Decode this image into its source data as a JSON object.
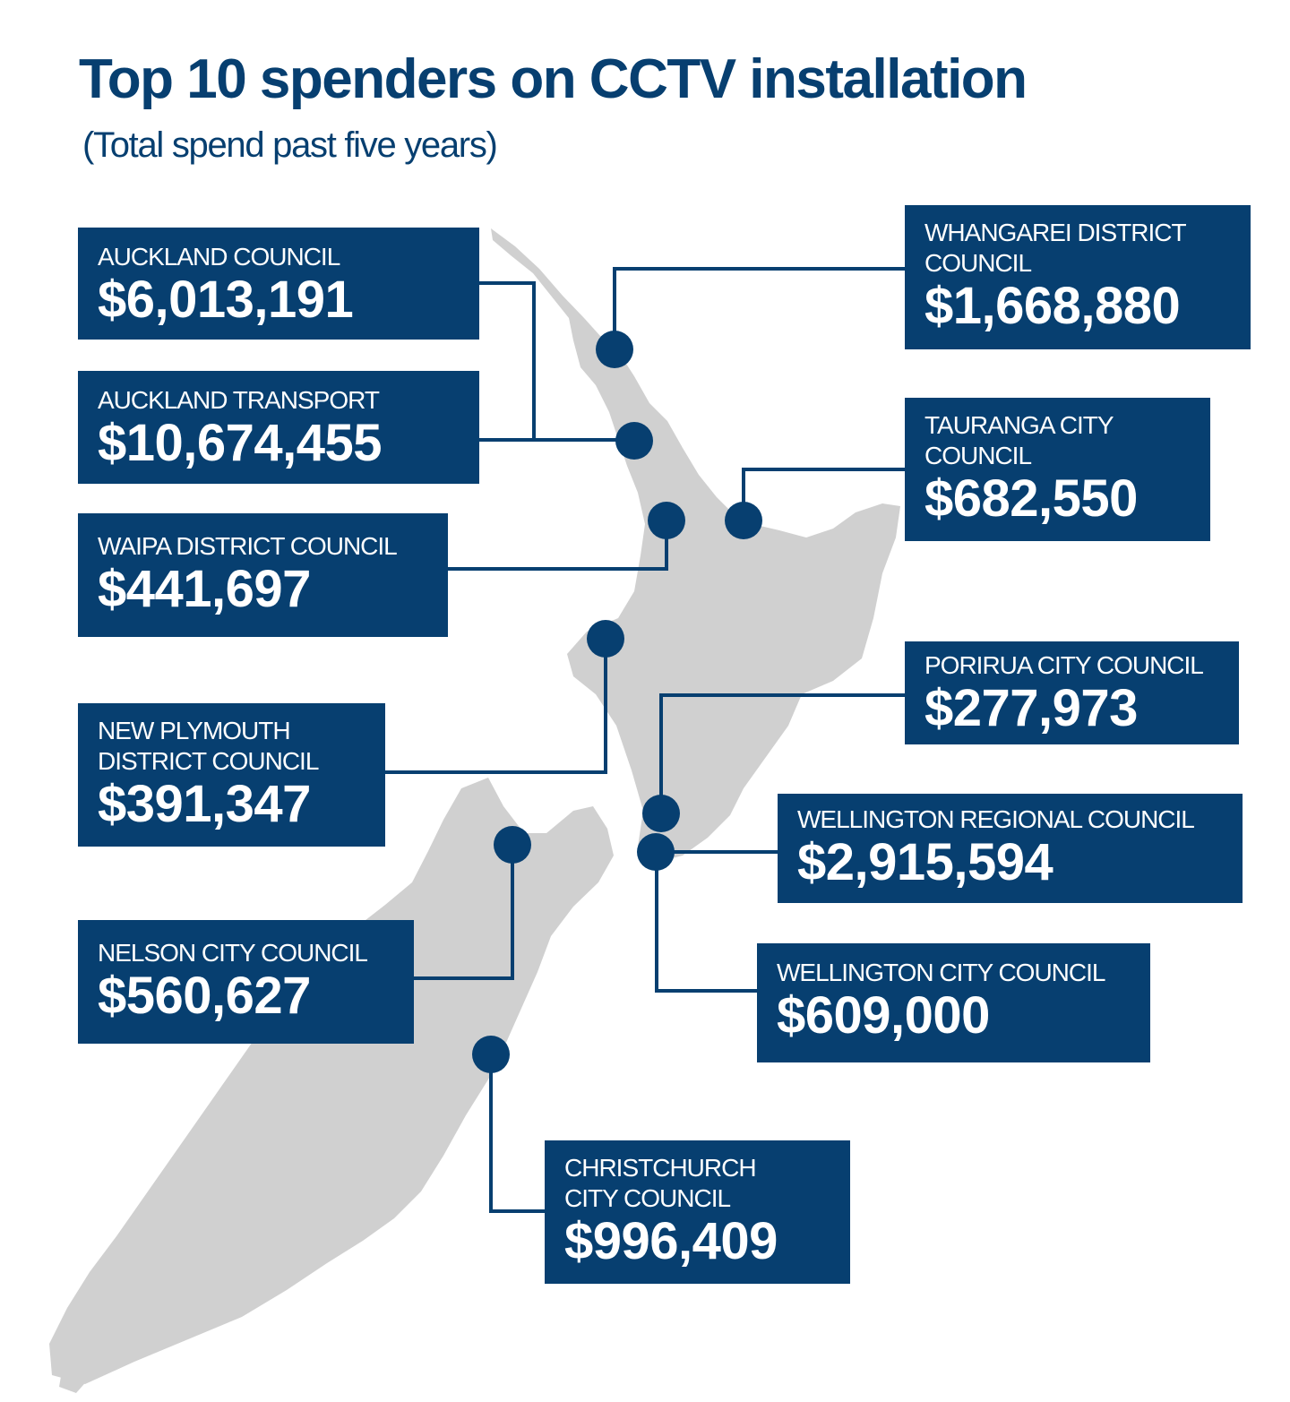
{
  "title": "Top 10 spenders on CCTV installation",
  "subtitle": "(Total spend past five years)",
  "colors": {
    "box_fill": "#073f70",
    "box_text": "#ffffff",
    "land": "#d0d0d0",
    "marker": "#073f70",
    "title_text": "#073f70"
  },
  "councils": [
    {
      "id": "auckland-council",
      "name": "AUCKLAND COUNCIL",
      "amount": "$6,013,191"
    },
    {
      "id": "auckland-transport",
      "name": "AUCKLAND TRANSPORT",
      "amount": "$10,674,455"
    },
    {
      "id": "waipa",
      "name": "WAIPA DISTRICT COUNCIL",
      "amount": "$441,697"
    },
    {
      "id": "new-plymouth",
      "name": "NEW PLYMOUTH\nDISTRICT COUNCIL",
      "amount": "$391,347"
    },
    {
      "id": "nelson",
      "name": "NELSON CITY COUNCIL",
      "amount": "$560,627"
    },
    {
      "id": "whangarei",
      "name": "WHANGAREI DISTRICT\nCOUNCIL",
      "amount": "$1,668,880"
    },
    {
      "id": "tauranga",
      "name": "TAURANGA CITY\nCOUNCIL",
      "amount": "$682,550"
    },
    {
      "id": "porirua",
      "name": "PORIRUA CITY COUNCIL",
      "amount": "$277,973"
    },
    {
      "id": "wellington-regional",
      "name": "WELLINGTON REGIONAL COUNCIL",
      "amount": "$2,915,594"
    },
    {
      "id": "wellington-city",
      "name": "WELLINGTON CITY COUNCIL",
      "amount": "$609,000"
    },
    {
      "id": "christchurch",
      "name": "CHRISTCHURCH\nCITY COUNCIL",
      "amount": "$996,409"
    }
  ]
}
